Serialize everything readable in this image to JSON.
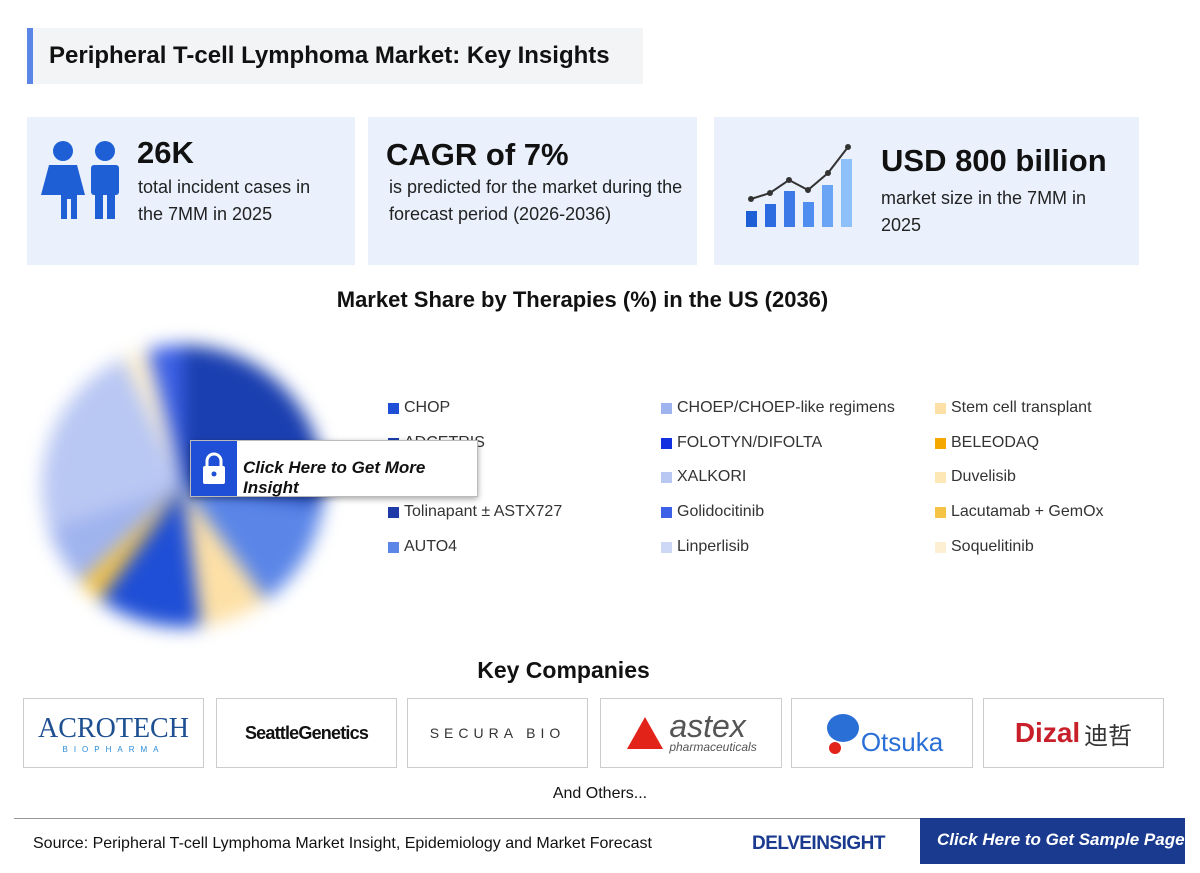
{
  "header": {
    "title": "Peripheral T-cell Lymphoma Market: Key Insights"
  },
  "stats": [
    {
      "value": "26K",
      "text": "total incident cases in the 7MM in 2025"
    },
    {
      "value": "CAGR of 7%",
      "text": "is predicted for the market during the forecast period (2026-2036)"
    },
    {
      "value": "USD 800 billion",
      "text": "market size in the 7MM in 2025"
    }
  ],
  "chart": {
    "title": "Market Share by Therapies (%) in the US (2036)",
    "legend": [
      {
        "label": "CHOP",
        "color": "#1f4fd6"
      },
      {
        "label": "ADCETRIS",
        "color": "#1a3fb0"
      },
      {
        "label": "Tolinapant ± ASTX727",
        "color": "#1d3aa6"
      },
      {
        "label": "AUTO4",
        "color": "#5b86e8"
      },
      {
        "label": "CHOEP/CHOEP-like regimens",
        "color": "#9fb3ee"
      },
      {
        "label": "FOLOTYN/DIFOLTA",
        "color": "#1230e0"
      },
      {
        "label": "XALKORI",
        "color": "#b9c7f3"
      },
      {
        "label": "Golidocitinib",
        "color": "#3d61e6"
      },
      {
        "label": "Linperlisib",
        "color": "#cdd7f6"
      },
      {
        "label": "Stem cell transplant",
        "color": "#fde0a6"
      },
      {
        "label": "BELEODAQ",
        "color": "#f5a800"
      },
      {
        "label": "Duvelisib",
        "color": "#fde7b5"
      },
      {
        "label": "Lacutamab + GemOx",
        "color": "#f6c445"
      },
      {
        "label": "Soquelitinib",
        "color": "#fdf0d2"
      }
    ],
    "overlay": "Click Here to Get More Insight"
  },
  "companies": {
    "title": "Key Companies",
    "logos": [
      {
        "name": "ACROTECH",
        "sub": "BIOPHARMA"
      },
      {
        "name": "SeattleGenetics"
      },
      {
        "name": "SECURA BIO"
      },
      {
        "name": "astex",
        "sub": "pharmaceuticals"
      },
      {
        "name": "Otsuka"
      },
      {
        "name": "Dizal",
        "sub": "迪哲"
      }
    ],
    "others": "And Others..."
  },
  "footer": {
    "source": "Source: Peripheral T-cell Lymphoma Market Insight, Epidemiology and Market Forecast",
    "brand": "DELVEINSIGHT",
    "cta": "Click Here to Get Sample Page"
  }
}
